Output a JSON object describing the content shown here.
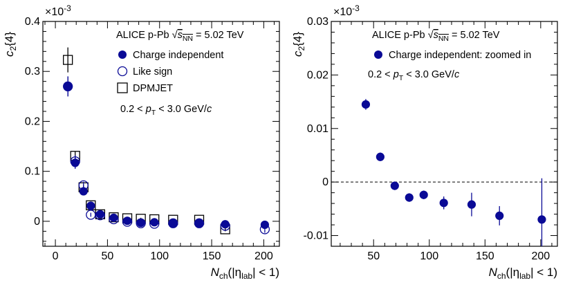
{
  "chart_data": [
    {
      "type": "scatter",
      "panel": "left",
      "exponent_label": "×10",
      "exponent_power": "-3",
      "ylabel": "c",
      "ylabel_sub": "2",
      "ylabel_suffix": "{4}",
      "xlabel": "N",
      "xlabel_sub": "ch",
      "xlabel_suffix": "(|η",
      "xlabel_sub2": "lab",
      "xlabel_suffix2": "| < 1)",
      "xlim": [
        -12,
        215
      ],
      "ylim": [
        -0.05,
        0.4
      ],
      "xticks": [
        0,
        50,
        100,
        150,
        200
      ],
      "yticks": [
        0,
        0.1,
        0.2,
        0.3,
        0.4
      ],
      "ytick_labels": [
        "0",
        "0.1",
        "0.2",
        "0.3",
        "0.4"
      ],
      "annotations": {
        "system": "ALICE p-Pb",
        "energy_prefix": "√",
        "energy_s": "s",
        "energy_sub": "NN",
        "energy_value": " = 5.02 TeV",
        "cut_prefix": "0.2 < ",
        "cut_var": "p",
        "cut_sub": "T",
        "cut_suffix": " < 3.0 GeV/",
        "cut_unit": "c"
      },
      "series": [
        {
          "name": "Charge independent",
          "marker": "filled-circle",
          "color": "#0a0a96",
          "x": [
            12,
            19,
            27,
            34,
            43,
            56,
            69,
            82,
            95,
            113,
            138,
            163,
            201
          ],
          "y": [
            0.27,
            0.117,
            0.06,
            0.031,
            0.014,
            0.007,
            0.001,
            -0.003,
            -0.002,
            -0.004,
            -0.004,
            -0.006,
            -0.007
          ],
          "yerr": [
            0.02,
            0.012,
            0.006,
            0.004,
            0.003,
            0.003,
            0.003,
            0.003,
            0.003,
            0.003,
            0.004,
            0.005,
            0.007
          ]
        },
        {
          "name": "Like sign",
          "marker": "open-circle",
          "color": "#0a0a96",
          "x": [
            12,
            19,
            27,
            34,
            43,
            56,
            69,
            82,
            95,
            113,
            138,
            163,
            201
          ],
          "y": [
            0.27,
            0.12,
            0.072,
            0.013,
            0.012,
            0.004,
            -0.001,
            -0.004,
            -0.005,
            -0.004,
            -0.004,
            -0.009,
            -0.016
          ],
          "yerr": [
            0.02,
            0.012,
            0.007,
            0.004,
            0.003,
            0.003,
            0.003,
            0.003,
            0.003,
            0.003,
            0.004,
            0.005,
            0.007
          ]
        },
        {
          "name": "DPMJET",
          "marker": "open-square",
          "color": "#000000",
          "x": [
            12,
            19,
            27,
            34,
            43,
            56,
            69,
            82,
            95,
            113,
            138,
            163
          ],
          "y": [
            0.323,
            0.131,
            0.068,
            0.032,
            0.014,
            0.008,
            0.006,
            0.005,
            0.004,
            0.003,
            0.003,
            -0.016
          ],
          "yerr": [
            0.025,
            0.008,
            0.005,
            0.003,
            0.002,
            0.002,
            0.002,
            0.002,
            0.002,
            0.002,
            0.003,
            0.004
          ]
        }
      ]
    },
    {
      "type": "scatter",
      "panel": "right",
      "exponent_label": "×10",
      "exponent_power": "-3",
      "ylabel": "c",
      "ylabel_sub": "2",
      "ylabel_suffix": "{4}",
      "xlabel": "N",
      "xlabel_sub": "ch",
      "xlabel_suffix": "(|η",
      "xlabel_sub2": "lab",
      "xlabel_suffix2": "| < 1)",
      "xlim": [
        12,
        215
      ],
      "ylim": [
        -0.012,
        0.03
      ],
      "xticks": [
        50,
        100,
        150,
        200
      ],
      "yticks": [
        -0.01,
        0,
        0.01,
        0.02,
        0.03
      ],
      "ytick_labels": [
        "-0.01",
        "0",
        "0.01",
        "0.02",
        "0.03"
      ],
      "reference_line_y": 0,
      "annotations": {
        "system": "ALICE p-Pb",
        "energy_prefix": "√",
        "energy_s": "s",
        "energy_sub": "NN",
        "energy_value": " = 5.02 TeV",
        "cut_prefix": "0.2 < ",
        "cut_var": "p",
        "cut_sub": "T",
        "cut_suffix": " < 3.0 GeV/",
        "cut_unit": "c"
      },
      "series": [
        {
          "name": "Charge independent: zoomed in",
          "marker": "filled-circle",
          "color": "#0a0a96",
          "x": [
            43,
            56,
            69,
            82,
            95,
            113,
            138,
            163,
            201
          ],
          "y": [
            0.0145,
            0.0047,
            -0.0007,
            -0.0029,
            -0.0024,
            -0.0039,
            -0.0042,
            -0.0063,
            -0.007
          ],
          "yerr": [
            0.001,
            0.0008,
            0.0008,
            0.0008,
            0.0008,
            0.0012,
            0.0022,
            0.0018,
            0.0077
          ]
        }
      ]
    }
  ]
}
